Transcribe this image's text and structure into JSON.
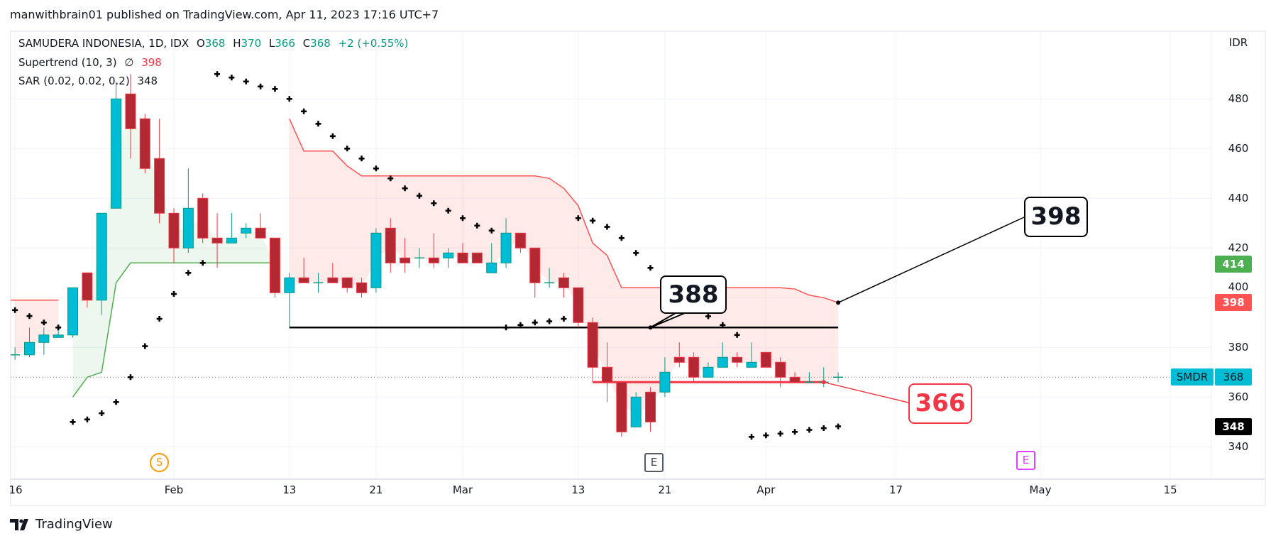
{
  "header": {
    "published": "manwithbrain01 published on TradingView.com, Apr 11, 2023 17:16 UTC+7"
  },
  "legend": {
    "symbol": "SAMUDERA INDONESIA, 1D, IDX",
    "o_label": "O",
    "o": "368",
    "h_label": "H",
    "h": "370",
    "l_label": "L",
    "l": "366",
    "c_label": "C",
    "c": "368",
    "change": "+2 (+0.55%)",
    "supertrend_name": "Supertrend (10, 3)",
    "supertrend_icon": "∅",
    "supertrend_value": "398",
    "sar_name": "SAR (0.02, 0.02, 0.2)",
    "sar_value": "348"
  },
  "price_axis": {
    "currency": "IDR",
    "ticks": [
      "480",
      "460",
      "440",
      "420",
      "400",
      "380",
      "360",
      "340"
    ],
    "labels": {
      "supertrend_up": {
        "text": "414",
        "color": "#4CAF50"
      },
      "supertrend_down": {
        "text": "398",
        "color": "#FF5252"
      },
      "last": {
        "symbol": "SMDR",
        "text": "368",
        "color": "#00BCD4"
      },
      "sar": {
        "text": "348",
        "color": "#000000"
      }
    }
  },
  "time_axis": {
    "ticks": [
      "16",
      "Feb",
      "13",
      "21",
      "Mar",
      "13",
      "21",
      "Apr",
      "17",
      "May",
      "15"
    ]
  },
  "markers": {
    "split": "S",
    "earnings_past": "E",
    "earnings_future": "E"
  },
  "annotations": {
    "level_388": "388",
    "supertrend_398": "398",
    "support_366": "366"
  },
  "footer": {
    "brand": "TradingView"
  },
  "colors": {
    "up": "#00BCD4",
    "up_border": "#089981",
    "down": "#B22833",
    "down_border": "#F23645",
    "supertrend_up": "#4CAF50",
    "supertrend_down": "#FF5252",
    "sar": "#000000"
  },
  "chart_data": {
    "type": "candlestick",
    "symbol": "SMDR",
    "ylim": [
      340,
      480
    ],
    "grid": true,
    "candles": [
      {
        "date": "2023-01-16",
        "o": 377,
        "h": 380,
        "l": 375,
        "c": 377
      },
      {
        "date": "2023-01-17",
        "o": 377,
        "h": 388,
        "l": 376,
        "c": 382
      },
      {
        "date": "2023-01-18",
        "o": 382,
        "h": 388,
        "l": 377,
        "c": 385
      },
      {
        "date": "2023-01-19",
        "o": 384,
        "h": 387,
        "l": 384,
        "c": 385
      },
      {
        "date": "2023-01-20",
        "o": 385,
        "h": 404,
        "l": 384,
        "c": 404
      },
      {
        "date": "2023-01-24",
        "o": 410,
        "h": 410,
        "l": 396,
        "c": 399
      },
      {
        "date": "2023-01-25",
        "o": 399,
        "h": 434,
        "l": 393,
        "c": 434
      },
      {
        "date": "2023-01-26",
        "o": 436,
        "h": 487,
        "l": 436,
        "c": 480
      },
      {
        "date": "2023-01-27",
        "o": 482,
        "h": 490,
        "l": 456,
        "c": 468
      },
      {
        "date": "2023-01-30",
        "o": 472,
        "h": 474,
        "l": 450,
        "c": 452
      },
      {
        "date": "2023-01-31",
        "o": 456,
        "h": 472,
        "l": 430,
        "c": 434
      },
      {
        "date": "2023-02-01",
        "o": 434,
        "h": 436,
        "l": 414,
        "c": 420
      },
      {
        "date": "2023-02-02",
        "o": 420,
        "h": 452,
        "l": 418,
        "c": 436
      },
      {
        "date": "2023-02-03",
        "o": 440,
        "h": 442,
        "l": 422,
        "c": 424
      },
      {
        "date": "2023-02-06",
        "o": 424,
        "h": 434,
        "l": 412,
        "c": 422
      },
      {
        "date": "2023-02-07",
        "o": 422,
        "h": 434,
        "l": 422,
        "c": 424
      },
      {
        "date": "2023-02-08",
        "o": 426,
        "h": 430,
        "l": 424,
        "c": 428
      },
      {
        "date": "2023-02-09",
        "o": 428,
        "h": 434,
        "l": 424,
        "c": 424
      },
      {
        "date": "2023-02-10",
        "o": 424,
        "h": 424,
        "l": 400,
        "c": 402
      },
      {
        "date": "2023-02-13",
        "o": 402,
        "h": 410,
        "l": 388,
        "c": 408
      },
      {
        "date": "2023-02-14",
        "o": 408,
        "h": 416,
        "l": 406,
        "c": 406
      },
      {
        "date": "2023-02-15",
        "o": 406,
        "h": 410,
        "l": 402,
        "c": 406
      },
      {
        "date": "2023-02-16",
        "o": 408,
        "h": 414,
        "l": 406,
        "c": 406
      },
      {
        "date": "2023-02-17",
        "o": 408,
        "h": 408,
        "l": 402,
        "c": 404
      },
      {
        "date": "2023-02-20",
        "o": 406,
        "h": 408,
        "l": 400,
        "c": 402
      },
      {
        "date": "2023-02-21",
        "o": 404,
        "h": 428,
        "l": 402,
        "c": 426
      },
      {
        "date": "2023-02-22",
        "o": 428,
        "h": 432,
        "l": 410,
        "c": 414
      },
      {
        "date": "2023-02-23",
        "o": 416,
        "h": 424,
        "l": 410,
        "c": 414
      },
      {
        "date": "2023-02-24",
        "o": 416,
        "h": 420,
        "l": 412,
        "c": 416
      },
      {
        "date": "2023-02-27",
        "o": 416,
        "h": 426,
        "l": 412,
        "c": 414
      },
      {
        "date": "2023-02-28",
        "o": 416,
        "h": 420,
        "l": 412,
        "c": 418
      },
      {
        "date": "2023-03-01",
        "o": 418,
        "h": 422,
        "l": 414,
        "c": 414
      },
      {
        "date": "2023-03-02",
        "o": 418,
        "h": 418,
        "l": 414,
        "c": 414
      },
      {
        "date": "2023-03-03",
        "o": 410,
        "h": 422,
        "l": 410,
        "c": 414
      },
      {
        "date": "2023-03-06",
        "o": 414,
        "h": 432,
        "l": 412,
        "c": 426
      },
      {
        "date": "2023-03-07",
        "o": 426,
        "h": 426,
        "l": 418,
        "c": 420
      },
      {
        "date": "2023-03-08",
        "o": 420,
        "h": 420,
        "l": 400,
        "c": 406
      },
      {
        "date": "2023-03-09",
        "o": 406,
        "h": 412,
        "l": 404,
        "c": 406
      },
      {
        "date": "2023-03-10",
        "o": 408,
        "h": 410,
        "l": 400,
        "c": 404
      },
      {
        "date": "2023-03-13",
        "o": 404,
        "h": 404,
        "l": 388,
        "c": 390
      },
      {
        "date": "2023-03-14",
        "o": 390,
        "h": 392,
        "l": 366,
        "c": 372
      },
      {
        "date": "2023-03-15",
        "o": 372,
        "h": 382,
        "l": 358,
        "c": 366
      },
      {
        "date": "2023-03-16",
        "o": 366,
        "h": 366,
        "l": 344,
        "c": 346
      },
      {
        "date": "2023-03-17",
        "o": 348,
        "h": 362,
        "l": 348,
        "c": 360
      },
      {
        "date": "2023-03-20",
        "o": 362,
        "h": 364,
        "l": 346,
        "c": 350
      },
      {
        "date": "2023-03-21",
        "o": 362,
        "h": 376,
        "l": 360,
        "c": 370
      },
      {
        "date": "2023-03-24",
        "o": 376,
        "h": 382,
        "l": 372,
        "c": 374
      },
      {
        "date": "2023-03-27",
        "o": 376,
        "h": 378,
        "l": 366,
        "c": 368
      },
      {
        "date": "2023-03-28",
        "o": 368,
        "h": 374,
        "l": 368,
        "c": 372
      },
      {
        "date": "2023-03-29",
        "o": 372,
        "h": 382,
        "l": 372,
        "c": 376
      },
      {
        "date": "2023-03-30",
        "o": 376,
        "h": 378,
        "l": 372,
        "c": 374
      },
      {
        "date": "2023-03-31",
        "o": 372,
        "h": 382,
        "l": 372,
        "c": 374
      },
      {
        "date": "2023-04-03",
        "o": 378,
        "h": 378,
        "l": 372,
        "c": 372
      },
      {
        "date": "2023-04-04",
        "o": 374,
        "h": 376,
        "l": 364,
        "c": 368
      },
      {
        "date": "2023-04-05",
        "o": 368,
        "h": 370,
        "l": 366,
        "c": 366
      },
      {
        "date": "2023-04-06",
        "o": 366,
        "h": 370,
        "l": 366,
        "c": 366
      },
      {
        "date": "2023-04-10",
        "o": 366,
        "h": 372,
        "l": 364,
        "c": 366
      },
      {
        "date": "2023-04-11",
        "o": 368,
        "h": 370,
        "l": 366,
        "c": 368
      }
    ],
    "supertrend": [
      {
        "v": 399,
        "dir": "down"
      },
      {
        "v": 399,
        "dir": "down"
      },
      {
        "v": 399,
        "dir": "down"
      },
      {
        "v": 399,
        "dir": "down"
      },
      {
        "v": 360,
        "dir": "up"
      },
      {
        "v": 368,
        "dir": "up"
      },
      {
        "v": 370,
        "dir": "up"
      },
      {
        "v": 406,
        "dir": "up"
      },
      {
        "v": 414,
        "dir": "up"
      },
      {
        "v": 414,
        "dir": "up"
      },
      {
        "v": 414,
        "dir": "up"
      },
      {
        "v": 414,
        "dir": "up"
      },
      {
        "v": 414,
        "dir": "up"
      },
      {
        "v": 414,
        "dir": "up"
      },
      {
        "v": 414,
        "dir": "up"
      },
      {
        "v": 414,
        "dir": "up"
      },
      {
        "v": 414,
        "dir": "up"
      },
      {
        "v": 414,
        "dir": "up"
      },
      {
        "v": 414,
        "dir": "up"
      },
      {
        "v": 472,
        "dir": "down"
      },
      {
        "v": 459,
        "dir": "down"
      },
      {
        "v": 459,
        "dir": "down"
      },
      {
        "v": 459,
        "dir": "down"
      },
      {
        "v": 453,
        "dir": "down"
      },
      {
        "v": 449,
        "dir": "down"
      },
      {
        "v": 449,
        "dir": "down"
      },
      {
        "v": 449,
        "dir": "down"
      },
      {
        "v": 449,
        "dir": "down"
      },
      {
        "v": 449,
        "dir": "down"
      },
      {
        "v": 449,
        "dir": "down"
      },
      {
        "v": 449,
        "dir": "down"
      },
      {
        "v": 449,
        "dir": "down"
      },
      {
        "v": 449,
        "dir": "down"
      },
      {
        "v": 449,
        "dir": "down"
      },
      {
        "v": 449,
        "dir": "down"
      },
      {
        "v": 449,
        "dir": "down"
      },
      {
        "v": 449,
        "dir": "down"
      },
      {
        "v": 448,
        "dir": "down"
      },
      {
        "v": 444,
        "dir": "down"
      },
      {
        "v": 437,
        "dir": "down"
      },
      {
        "v": 422,
        "dir": "down"
      },
      {
        "v": 417,
        "dir": "down"
      },
      {
        "v": 404,
        "dir": "down"
      },
      {
        "v": 404,
        "dir": "down"
      },
      {
        "v": 404,
        "dir": "down"
      },
      {
        "v": 404,
        "dir": "down"
      },
      {
        "v": 404,
        "dir": "down"
      },
      {
        "v": 404,
        "dir": "down"
      },
      {
        "v": 404,
        "dir": "down"
      },
      {
        "v": 404,
        "dir": "down"
      },
      {
        "v": 404,
        "dir": "down"
      },
      {
        "v": 404,
        "dir": "down"
      },
      {
        "v": 404,
        "dir": "down"
      },
      {
        "v": 404,
        "dir": "down"
      },
      {
        "v": 403.5,
        "dir": "down"
      },
      {
        "v": 401,
        "dir": "down"
      },
      {
        "v": 400,
        "dir": "down"
      },
      {
        "v": 398,
        "dir": "down"
      }
    ],
    "sar": [
      395,
      392.6,
      390,
      388,
      350,
      351,
      353.5,
      358,
      368,
      380.5,
      391.5,
      401.5,
      410,
      414,
      490,
      488.6,
      487,
      485,
      484,
      480,
      475,
      470,
      465,
      460,
      456,
      452,
      448,
      444,
      441,
      438,
      435,
      432,
      429,
      427,
      388,
      389,
      390,
      390.5,
      391.5,
      432,
      431,
      428.5,
      424,
      418,
      412,
      406.6,
      401,
      396.8,
      392.5,
      389,
      385,
      344,
      344.6,
      345.3,
      346,
      346.8,
      347.5,
      348.2
    ],
    "horizontal_lines": [
      {
        "price": 388,
        "color": "#000000"
      },
      {
        "price": 366,
        "color": "#F23645"
      }
    ]
  }
}
